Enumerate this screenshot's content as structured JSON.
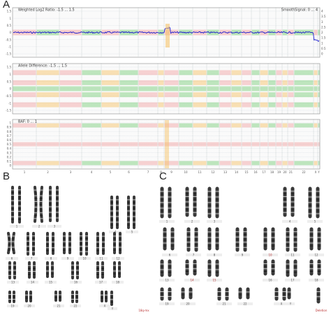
{
  "panels": {
    "a": "A",
    "b": "B",
    "c": "C"
  },
  "track1": {
    "title": "Weighted Log2 Ratio: -1.5 ... 1.5",
    "right_title": "SmoothSignal: 0 ... 4",
    "left_ticks": [
      "1.5",
      "1",
      "0.5",
      "0",
      "-0.5",
      "-1",
      "-1.5"
    ],
    "right_ticks": [
      "4",
      "3.5",
      "3",
      "2.5",
      "2",
      "1.5",
      "1",
      "0.5",
      "0"
    ]
  },
  "track2": {
    "title": "Allele Difference: -1.5 ... 1.5",
    "left_ticks": [
      "1.5",
      "1",
      "0.5",
      "0",
      "-0.5",
      "-1",
      "-1.5"
    ]
  },
  "track3": {
    "title": "BAF: 0 ... 1",
    "left_ticks": [
      "1",
      "0.9",
      "0.8",
      "0.7",
      "0.6",
      "0.5",
      "0.4",
      "0.3",
      "0.2",
      "0.1",
      "0"
    ]
  },
  "chromosomes": [
    "1",
    "2",
    "3",
    "4",
    "5",
    "6",
    "7",
    "8",
    "9",
    "10",
    "11",
    "12",
    "13",
    "14",
    "15",
    "16",
    "17",
    "18",
    "19",
    "20",
    "21",
    "22",
    "X",
    "Y"
  ],
  "karyotype_b": {
    "labels": [
      "1",
      "2",
      "3",
      "4",
      "5",
      "6",
      "7",
      "8",
      "9",
      "10",
      "11",
      "12",
      "13",
      "14",
      "15",
      "16",
      "17",
      "18",
      "19",
      "20",
      "21",
      "22",
      "X",
      "Y"
    ],
    "marker": "18q-mx"
  },
  "karyotype_c": {
    "labels": [
      "1",
      "2",
      "3",
      "4",
      "5",
      "6",
      "7",
      "8",
      "9",
      "10",
      "11",
      "12",
      "13",
      "14",
      "15",
      "16",
      "17",
      "18",
      "19",
      "20",
      "21",
      "22",
      "X",
      "Y"
    ],
    "marker": "Deletion"
  },
  "colors": {
    "green": "#7fd07f",
    "pink": "#f2a8a8",
    "orange": "#f5c36b",
    "blue": "#1a1ad0",
    "grid": "#b9c4d0",
    "frame": "#8a8a8a"
  }
}
